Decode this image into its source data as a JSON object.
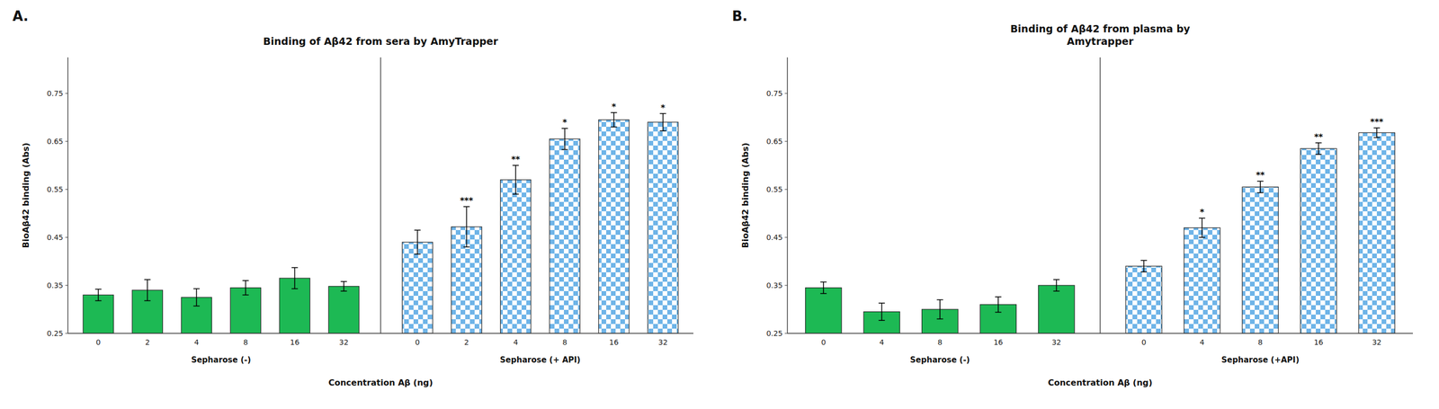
{
  "chart_data": [
    {
      "type": "bar",
      "label": "A.",
      "title": "Binding of Aβ42 from sera by AmyTrapper",
      "x_label": "Concentration Aβ (ng)",
      "y_label": "BioAβ42 binding (Abs)",
      "ylim": [
        0.25,
        0.825
      ],
      "yticks": [
        0.25,
        0.35,
        0.45,
        0.55,
        0.65,
        0.75
      ],
      "grid": false,
      "series": [
        {
          "name": "Sepharose (-)",
          "color": "#1DB954",
          "categories": [
            "0",
            "2",
            "4",
            "8",
            "16",
            "32"
          ],
          "values": [
            0.33,
            0.34,
            0.325,
            0.345,
            0.365,
            0.348
          ],
          "errors": [
            0.012,
            0.022,
            0.018,
            0.015,
            0.022,
            0.01
          ]
        },
        {
          "name": "Sepharose (+ API)",
          "color": "#6EB4E8",
          "categories": [
            "0",
            "2",
            "4",
            "8",
            "16",
            "32"
          ],
          "values": [
            0.44,
            0.472,
            0.57,
            0.655,
            0.695,
            0.69
          ],
          "errors": [
            0.025,
            0.042,
            0.03,
            0.022,
            0.015,
            0.018
          ],
          "annotations": [
            null,
            "***",
            "**",
            "*",
            "*",
            "*"
          ]
        }
      ]
    },
    {
      "type": "bar",
      "label": "B.",
      "title": "Binding of Aβ42 from plasma by\nAmytrapper",
      "x_label": "Concentration Aβ (ng)",
      "y_label": "BioAβ42 binding (Abs)",
      "ylim": [
        0.25,
        0.825
      ],
      "yticks": [
        0.25,
        0.35,
        0.45,
        0.55,
        0.65,
        0.75
      ],
      "grid": false,
      "series": [
        {
          "name": "Sepharose (-)",
          "color": "#1DB954",
          "categories": [
            "0",
            "4",
            "8",
            "16",
            "32"
          ],
          "values": [
            0.345,
            0.295,
            0.3,
            0.31,
            0.35
          ],
          "errors": [
            0.012,
            0.018,
            0.02,
            0.016,
            0.012
          ]
        },
        {
          "name": "Sepharose (+API)",
          "color": "#6EB4E8",
          "categories": [
            "0",
            "4",
            "8",
            "16",
            "32"
          ],
          "values": [
            0.39,
            0.47,
            0.555,
            0.635,
            0.668
          ],
          "errors": [
            0.012,
            0.02,
            0.012,
            0.012,
            0.01
          ],
          "annotations": [
            null,
            "*",
            "**",
            "**",
            "***"
          ]
        }
      ]
    }
  ]
}
